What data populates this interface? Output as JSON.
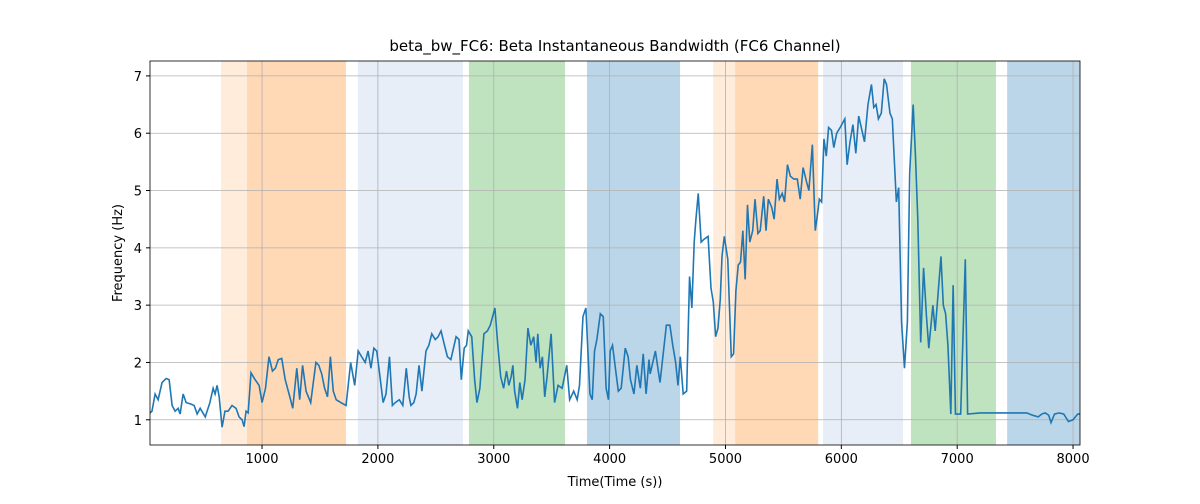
{
  "chart_data": {
    "type": "line",
    "title": "beta_bw_FC6: Beta Instantaneous Bandwidth (FC6 Channel)",
    "xlabel": "Time(Time (s))",
    "ylabel": "Frequency (Hz)",
    "xlim": [
      33,
      8060
    ],
    "ylim": [
      0.56,
      7.26
    ],
    "xticks": [
      1000,
      2000,
      3000,
      4000,
      5000,
      6000,
      7000,
      8000
    ],
    "yticks": [
      1,
      2,
      3,
      4,
      5,
      6,
      7
    ],
    "grid": true,
    "spans": [
      {
        "start": 646,
        "end": 870,
        "color": "#ff7f0e",
        "alpha": 0.15
      },
      {
        "start": 870,
        "end": 1725,
        "color": "#ff7f0e",
        "alpha": 0.3
      },
      {
        "start": 1827,
        "end": 2734,
        "color": "#aec7e8",
        "alpha": 0.3
      },
      {
        "start": 2786,
        "end": 3615,
        "color": "#2ca02c",
        "alpha": 0.3
      },
      {
        "start": 3805,
        "end": 4608,
        "color": "#1f77b4",
        "alpha": 0.3
      },
      {
        "start": 4894,
        "end": 5084,
        "color": "#ff7f0e",
        "alpha": 0.15
      },
      {
        "start": 5084,
        "end": 5800,
        "color": "#ff7f0e",
        "alpha": 0.3
      },
      {
        "start": 5843,
        "end": 6533,
        "color": "#aec7e8",
        "alpha": 0.3
      },
      {
        "start": 6601,
        "end": 7335,
        "color": "#2ca02c",
        "alpha": 0.3
      },
      {
        "start": 7431,
        "end": 8060,
        "color": "#1f77b4",
        "alpha": 0.3
      }
    ],
    "color": "#1f77b4",
    "x": [
      33,
      50,
      77,
      103,
      137,
      172,
      198,
      224,
      250,
      276,
      293,
      319,
      345,
      379,
      414,
      440,
      466,
      510,
      550,
      578,
      595,
      612,
      630,
      655,
      680,
      707,
      741,
      776,
      802,
      828,
      845,
      862,
      880,
      905,
      940,
      975,
      1000,
      1030,
      1060,
      1090,
      1115,
      1140,
      1170,
      1200,
      1240,
      1265,
      1300,
      1325,
      1350,
      1380,
      1420,
      1465,
      1490,
      1515,
      1540,
      1565,
      1590,
      1615,
      1640,
      1680,
      1725,
      1765,
      1800,
      1830,
      1860,
      1890,
      1915,
      1940,
      1965,
      1990,
      2015,
      2045,
      2070,
      2100,
      2125,
      2150,
      2185,
      2215,
      2245,
      2270,
      2285,
      2310,
      2330,
      2355,
      2380,
      2415,
      2440,
      2465,
      2495,
      2520,
      2545,
      2575,
      2600,
      2630,
      2675,
      2700,
      2720,
      2745,
      2765,
      2780,
      2810,
      2835,
      2855,
      2880,
      2915,
      2945,
      2970,
      3010,
      3035,
      3060,
      3085,
      3110,
      3130,
      3150,
      3165,
      3180,
      3205,
      3225,
      3245,
      3270,
      3295,
      3320,
      3345,
      3365,
      3380,
      3400,
      3420,
      3440,
      3460,
      3495,
      3525,
      3555,
      3590,
      3630,
      3655,
      3690,
      3720,
      3740,
      3770,
      3795,
      3830,
      3850,
      3870,
      3890,
      3920,
      3945,
      3970,
      3990,
      4005,
      4025,
      4075,
      4100,
      4135,
      4160,
      4180,
      4210,
      4235,
      4265,
      4290,
      4315,
      4340,
      4350,
      4395,
      4435,
      4490,
      4520,
      4545,
      4570,
      4590,
      4610,
      4635,
      4665,
      4690,
      4710,
      4730,
      4745,
      4765,
      4790,
      4815,
      4850,
      4875,
      4895,
      4915,
      4935,
      4955,
      4970,
      4990,
      5020,
      5050,
      5070,
      5090,
      5110,
      5130,
      5150,
      5170,
      5190,
      5210,
      5235,
      5255,
      5280,
      5300,
      5330,
      5350,
      5370,
      5400,
      5420,
      5445,
      5465,
      5490,
      5510,
      5535,
      5560,
      5590,
      5620,
      5645,
      5670,
      5700,
      5720,
      5750,
      5775,
      5795,
      5810,
      5830,
      5850,
      5870,
      5890,
      5915,
      5935,
      5960,
      5990,
      6030,
      6050,
      6075,
      6100,
      6125,
      6150,
      6200,
      6230,
      6260,
      6280,
      6300,
      6320,
      6345,
      6370,
      6390,
      6420,
      6440,
      6475,
      6495,
      6520,
      6545,
      6570,
      6590,
      6620,
      6640,
      6660,
      6685,
      6710,
      6735,
      6755,
      6790,
      6810,
      6860,
      6880,
      6900,
      6920,
      6945,
      6965,
      6985,
      7030,
      7070,
      7090,
      7200,
      7400,
      7600,
      7650,
      7700,
      7730,
      7760,
      7790,
      7810,
      7840,
      7880,
      7920,
      7960,
      8000,
      8040,
      8060
    ],
    "values": [
      1.12,
      1.15,
      1.45,
      1.35,
      1.65,
      1.72,
      1.7,
      1.25,
      1.15,
      1.2,
      1.1,
      1.45,
      1.3,
      1.28,
      1.25,
      1.1,
      1.2,
      1.05,
      1.3,
      1.55,
      1.45,
      1.6,
      1.4,
      0.87,
      1.15,
      1.15,
      1.25,
      1.2,
      1.05,
      1.0,
      0.88,
      1.15,
      1.12,
      1.82,
      1.7,
      1.6,
      1.3,
      1.55,
      2.1,
      1.85,
      1.9,
      2.05,
      2.07,
      1.7,
      1.4,
      1.2,
      1.9,
      1.35,
      1.95,
      1.5,
      1.3,
      2.0,
      1.95,
      1.8,
      1.55,
      1.4,
      2.1,
      1.5,
      1.35,
      1.3,
      1.25,
      2.0,
      1.6,
      2.2,
      2.1,
      2.0,
      2.2,
      1.9,
      2.25,
      2.2,
      1.8,
      1.3,
      1.45,
      2.1,
      1.25,
      1.3,
      1.35,
      1.25,
      1.9,
      1.4,
      1.25,
      1.3,
      1.45,
      1.95,
      1.5,
      2.2,
      2.3,
      2.5,
      2.4,
      2.45,
      2.55,
      2.3,
      2.1,
      2.05,
      2.45,
      2.4,
      1.7,
      2.25,
      2.3,
      2.55,
      2.45,
      1.7,
      1.3,
      1.55,
      2.5,
      2.55,
      2.65,
      2.95,
      2.3,
      1.75,
      1.55,
      1.85,
      1.6,
      1.75,
      1.95,
      1.5,
      1.2,
      1.65,
      1.35,
      1.7,
      2.6,
      2.3,
      2.45,
      2.0,
      2.5,
      1.9,
      2.1,
      1.4,
      1.75,
      2.5,
      1.3,
      1.6,
      1.55,
      1.95,
      1.35,
      1.5,
      1.35,
      1.6,
      2.8,
      2.95,
      1.45,
      1.35,
      2.2,
      2.4,
      2.85,
      2.8,
      1.55,
      1.35,
      2.2,
      2.3,
      1.5,
      1.55,
      2.25,
      2.1,
      1.7,
      1.45,
      1.95,
      1.55,
      2.15,
      1.45,
      2.05,
      1.8,
      2.2,
      1.65,
      2.65,
      2.65,
      2.3,
      2.0,
      1.6,
      2.1,
      1.45,
      1.5,
      3.5,
      2.95,
      4.1,
      4.5,
      4.95,
      4.1,
      4.15,
      4.2,
      3.3,
      3.05,
      2.45,
      2.6,
      3.1,
      3.85,
      4.2,
      3.8,
      2.1,
      2.15,
      3.25,
      3.7,
      3.75,
      4.3,
      3.45,
      4.75,
      4.1,
      4.3,
      4.85,
      4.25,
      4.3,
      4.9,
      4.3,
      4.85,
      4.7,
      4.5,
      5.2,
      4.85,
      4.95,
      4.8,
      5.45,
      5.25,
      5.2,
      5.2,
      4.85,
      5.4,
      5.15,
      5.0,
      5.8,
      4.3,
      4.6,
      4.85,
      4.8,
      5.9,
      5.6,
      6.1,
      6.05,
      5.75,
      6.0,
      6.1,
      6.25,
      5.45,
      5.85,
      6.15,
      5.65,
      6.3,
      5.85,
      6.5,
      6.85,
      6.45,
      6.5,
      6.25,
      6.35,
      6.95,
      6.85,
      6.35,
      6.25,
      4.8,
      5.05,
      2.7,
      1.9,
      2.7,
      5.3,
      6.5,
      5.6,
      4.5,
      2.35,
      3.65,
      2.8,
      2.25,
      3.0,
      2.55,
      3.85,
      3.0,
      2.85,
      2.3,
      1.1,
      3.35,
      1.1,
      1.1,
      3.8,
      1.1,
      1.12,
      1.12,
      1.12,
      1.08,
      1.05,
      1.1,
      1.12,
      1.08,
      0.95,
      1.1,
      1.12,
      1.1,
      0.97,
      1.0,
      1.1,
      1.1
    ]
  }
}
